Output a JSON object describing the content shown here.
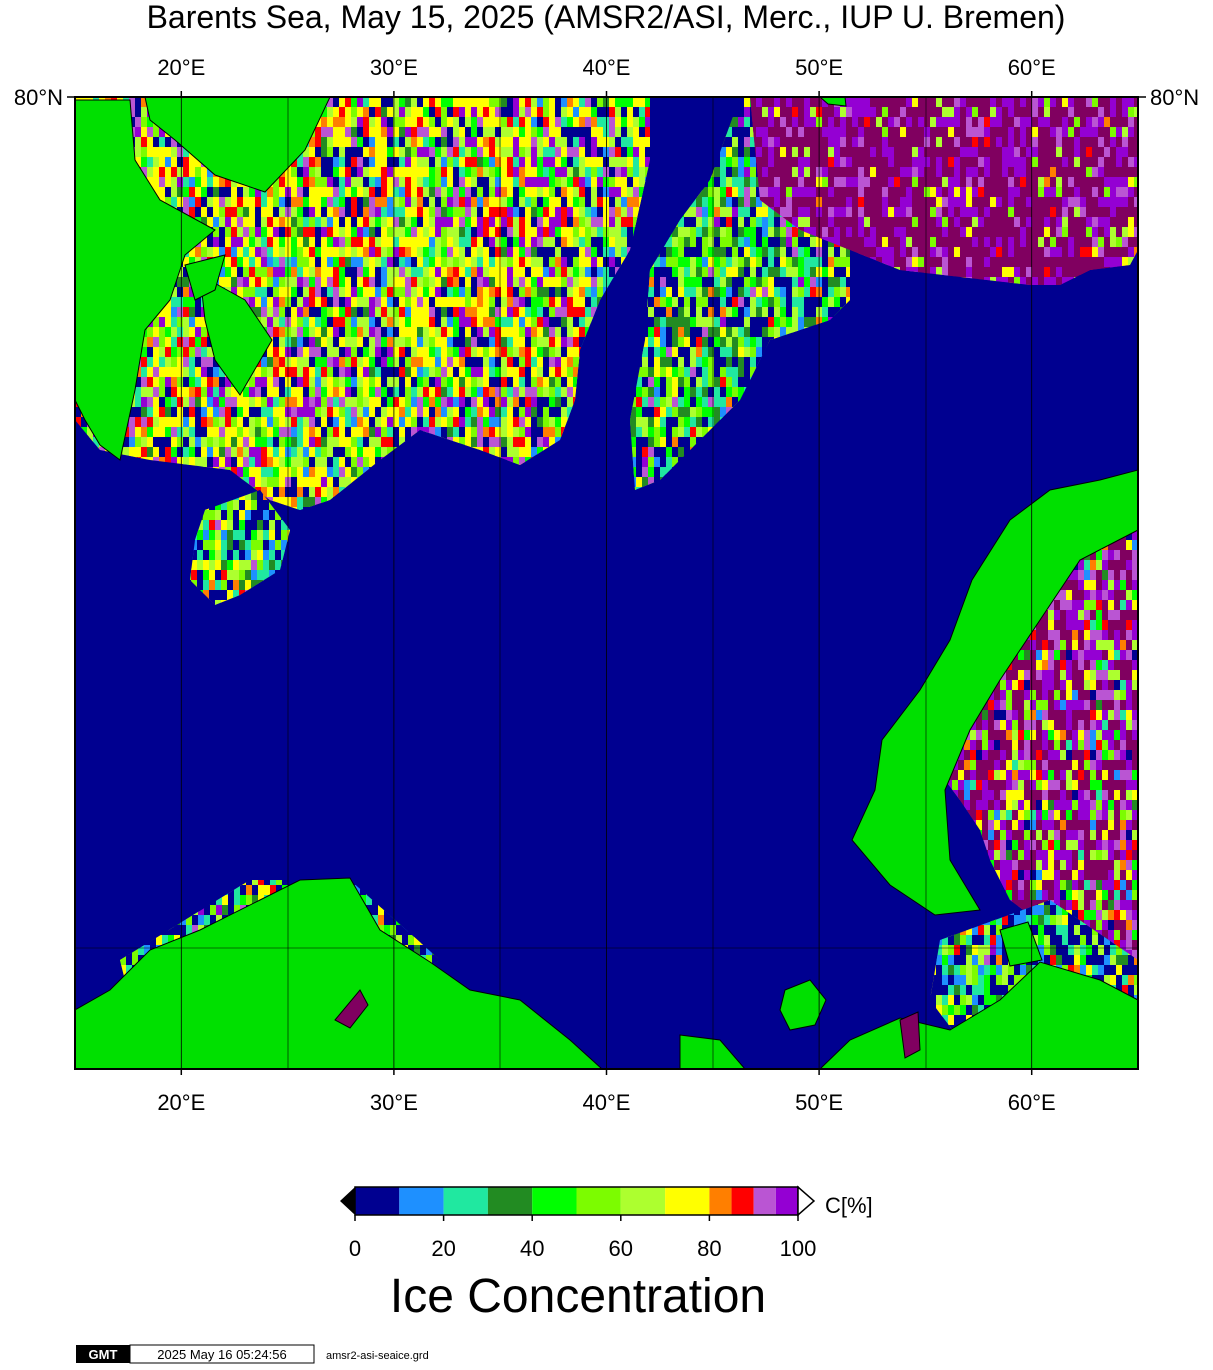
{
  "title": "Barents Sea, May 15, 2025 (AMSR2/ASI, Merc., IUP U. Bremen)",
  "map": {
    "lon_range": [
      15,
      65
    ],
    "lon_ticks": [
      {
        "value": 20,
        "label": "20°E"
      },
      {
        "value": 30,
        "label": "30°E"
      },
      {
        "value": 40,
        "label": "40°E"
      },
      {
        "value": 50,
        "label": "50°E"
      },
      {
        "value": 60,
        "label": "60°E"
      }
    ],
    "lat_ticks": [
      {
        "value": 80,
        "label": "80°N"
      }
    ]
  },
  "colorbar": {
    "lim": [
      0,
      100
    ],
    "ticks": [
      0,
      20,
      40,
      60,
      80,
      100
    ],
    "bins": [
      0,
      10,
      20,
      30,
      40,
      50,
      60,
      70,
      80,
      85,
      90,
      95,
      100
    ],
    "colors": [
      "#000090",
      "#1e90ff",
      "#20e8a0",
      "#228b22",
      "#00ff00",
      "#7cfc00",
      "#adff2f",
      "#ffff00",
      "#ff7f00",
      "#ff0000",
      "#ba55d3",
      "#9400d3"
    ],
    "unit": "C[%]",
    "label": "Ice Concentration"
  },
  "footer": {
    "logo": "GMT",
    "timestamp": "2025 May 16 05:24:56",
    "file": "amsr2-asi-seaice.grd"
  }
}
